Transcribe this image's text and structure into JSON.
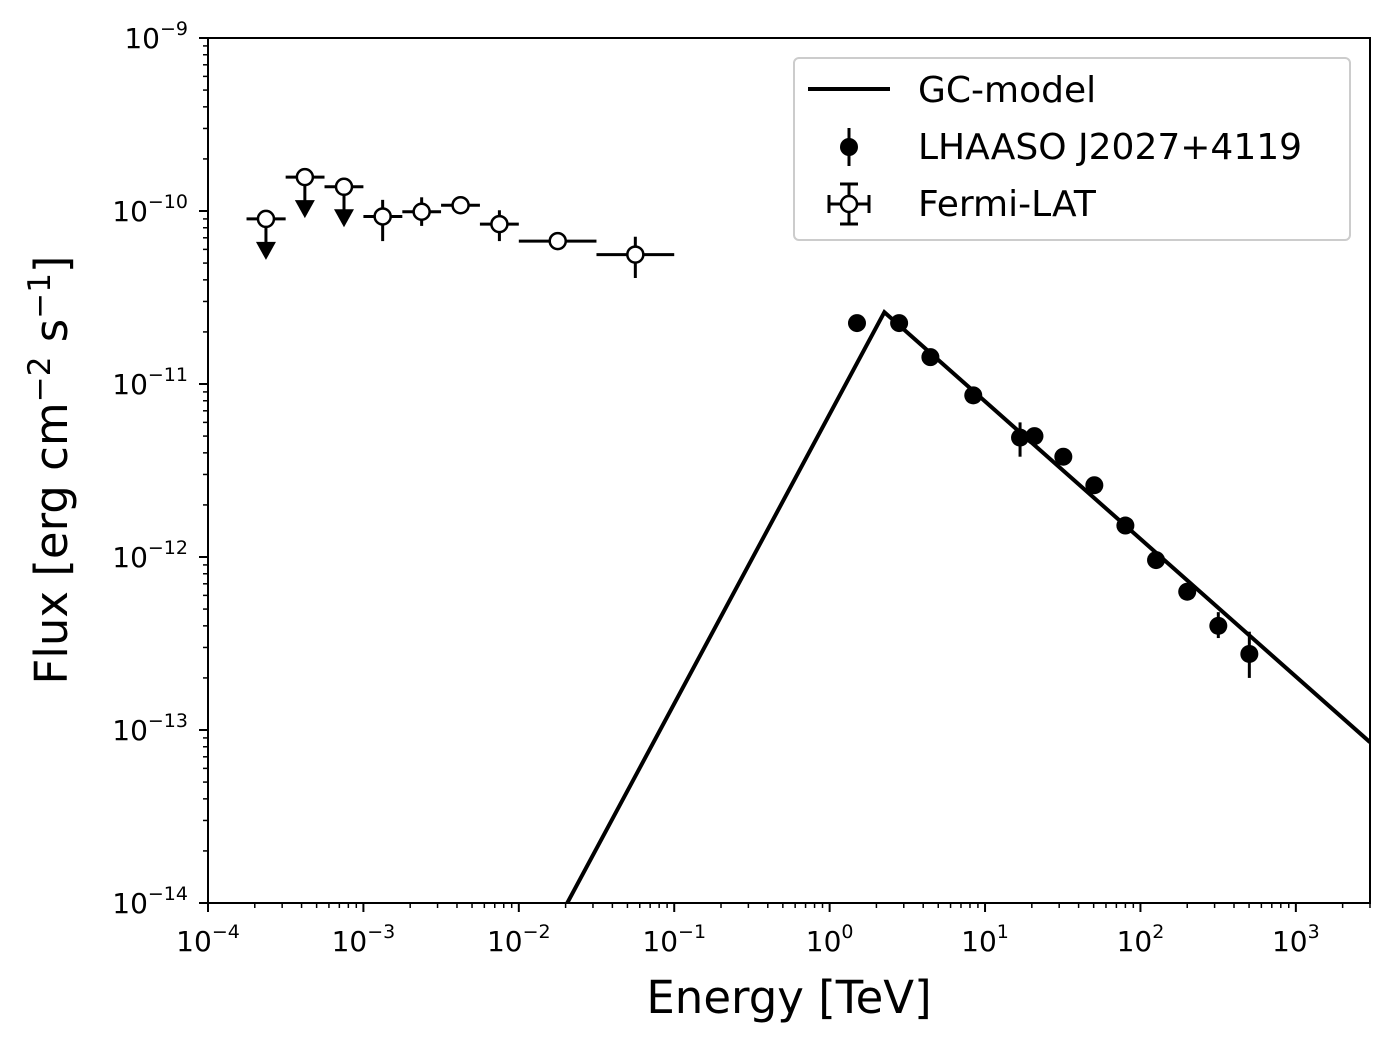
{
  "chart_data": {
    "type": "scatter",
    "title": "",
    "xlabel": "Energy [TeV]",
    "ylabel": "Flux [erg cm",
    "ylabel_parts": {
      "main": "Flux [erg cm",
      "sup1": "−2",
      "mid": " s",
      "sup2": "−1",
      "end": "]"
    },
    "xscale": "log",
    "yscale": "log",
    "xlim": [
      0.0001,
      3000
    ],
    "ylim": [
      1e-14,
      1e-09
    ],
    "x_ticks": [
      {
        "value": 0.0001,
        "base": "10",
        "exp": "−4"
      },
      {
        "value": 0.001,
        "base": "10",
        "exp": "−3"
      },
      {
        "value": 0.01,
        "base": "10",
        "exp": "−2"
      },
      {
        "value": 0.1,
        "base": "10",
        "exp": "−1"
      },
      {
        "value": 1,
        "base": "10",
        "exp": "0"
      },
      {
        "value": 10,
        "base": "10",
        "exp": "1"
      },
      {
        "value": 100,
        "base": "10",
        "exp": "2"
      },
      {
        "value": 1000,
        "base": "10",
        "exp": "3"
      }
    ],
    "y_ticks": [
      {
        "value": 1e-14,
        "base": "10",
        "exp": "−14"
      },
      {
        "value": 1e-13,
        "base": "10",
        "exp": "−13"
      },
      {
        "value": 1e-12,
        "base": "10",
        "exp": "−12"
      },
      {
        "value": 1e-11,
        "base": "10",
        "exp": "−11"
      },
      {
        "value": 1e-10,
        "base": "10",
        "exp": "−10"
      },
      {
        "value": 1e-09,
        "base": "10",
        "exp": "−9"
      }
    ],
    "grid": false,
    "legend_position": "top-right",
    "series": [
      {
        "name": "GC-model",
        "kind": "line",
        "color": "#000000",
        "x": [
          0.0205,
          2.25,
          3000
        ],
        "y": [
          1e-14,
          2.6e-11,
          8.5e-14
        ]
      },
      {
        "name": "LHAASO J2027+4119",
        "kind": "errorbar-filled",
        "color": "#000000",
        "points": [
          {
            "x": 1.5,
            "y": 2.25e-11,
            "ylo": 2.12e-11,
            "yhi": 2.38e-11
          },
          {
            "x": 2.8,
            "y": 2.25e-11,
            "ylo": 2.12e-11,
            "yhi": 2.38e-11
          },
          {
            "x": 4.45,
            "y": 1.43e-11,
            "ylo": 1.35e-11,
            "yhi": 1.52e-11
          },
          {
            "x": 8.4,
            "y": 8.6e-12,
            "ylo": 8e-12,
            "yhi": 9.3e-12
          },
          {
            "x": 16.8,
            "y": 4.9e-12,
            "ylo": 3.8e-12,
            "yhi": 6e-12
          },
          {
            "x": 20.8,
            "y": 5e-12,
            "ylo": 4.6e-12,
            "yhi": 5.4e-12
          },
          {
            "x": 31.9,
            "y": 3.8e-12,
            "ylo": 3.5e-12,
            "yhi": 4.1e-12
          },
          {
            "x": 50.5,
            "y": 2.6e-12,
            "ylo": 2.4e-12,
            "yhi": 2.9e-12
          },
          {
            "x": 80.0,
            "y": 1.52e-12,
            "ylo": 1.42e-12,
            "yhi": 1.62e-12
          },
          {
            "x": 126,
            "y": 9.6e-13,
            "ylo": 8.9e-13,
            "yhi": 1.03e-12
          },
          {
            "x": 200,
            "y": 6.3e-13,
            "ylo": 5.8e-13,
            "yhi": 6.8e-13
          },
          {
            "x": 317,
            "y": 4e-13,
            "ylo": 3.4e-13,
            "yhi": 4.8e-13
          },
          {
            "x": 502,
            "y": 2.75e-13,
            "ylo": 2e-13,
            "yhi": 3.7e-13
          }
        ]
      },
      {
        "name": "Fermi-LAT",
        "kind": "errorbar-open",
        "color": "#000000",
        "points": [
          {
            "x": 0.000236,
            "y": 9e-11,
            "xlo": 0.000177,
            "xhi": 0.000316,
            "upper_limit": true,
            "arrow_to": 5.5e-11
          },
          {
            "x": 0.00042,
            "y": 1.57e-10,
            "xlo": 0.000316,
            "xhi": 0.000562,
            "upper_limit": true,
            "arrow_to": 9.6e-11
          },
          {
            "x": 0.00075,
            "y": 1.38e-10,
            "xlo": 0.000562,
            "xhi": 0.001,
            "upper_limit": true,
            "arrow_to": 8.5e-11
          },
          {
            "x": 0.00133,
            "y": 9.3e-11,
            "xlo": 0.001,
            "xhi": 0.00178,
            "ylo": 6.7e-11,
            "yhi": 1.16e-10
          },
          {
            "x": 0.00237,
            "y": 9.9e-11,
            "xlo": 0.00178,
            "xhi": 0.00316,
            "ylo": 8.2e-11,
            "yhi": 1.2e-10
          },
          {
            "x": 0.00422,
            "y": 1.08e-10,
            "xlo": 0.00316,
            "xhi": 0.00562,
            "ylo": 9.7e-11,
            "yhi": 1.2e-10
          },
          {
            "x": 0.0075,
            "y": 8.4e-11,
            "xlo": 0.00562,
            "xhi": 0.01,
            "ylo": 6.7e-11,
            "yhi": 1.01e-10
          },
          {
            "x": 0.0178,
            "y": 6.7e-11,
            "xlo": 0.01,
            "xhi": 0.0316,
            "ylo": 6.5e-11,
            "yhi": 6.9e-11
          },
          {
            "x": 0.0562,
            "y": 5.6e-11,
            "xlo": 0.0316,
            "xhi": 0.1,
            "ylo": 4.1e-11,
            "yhi": 7.1e-11
          }
        ]
      }
    ],
    "legend": [
      {
        "label": "GC-model",
        "marker": "line"
      },
      {
        "label": "LHAASO J2027+4119",
        "marker": "filled-errorbar"
      },
      {
        "label": "Fermi-LAT",
        "marker": "open-errorbar"
      }
    ]
  }
}
